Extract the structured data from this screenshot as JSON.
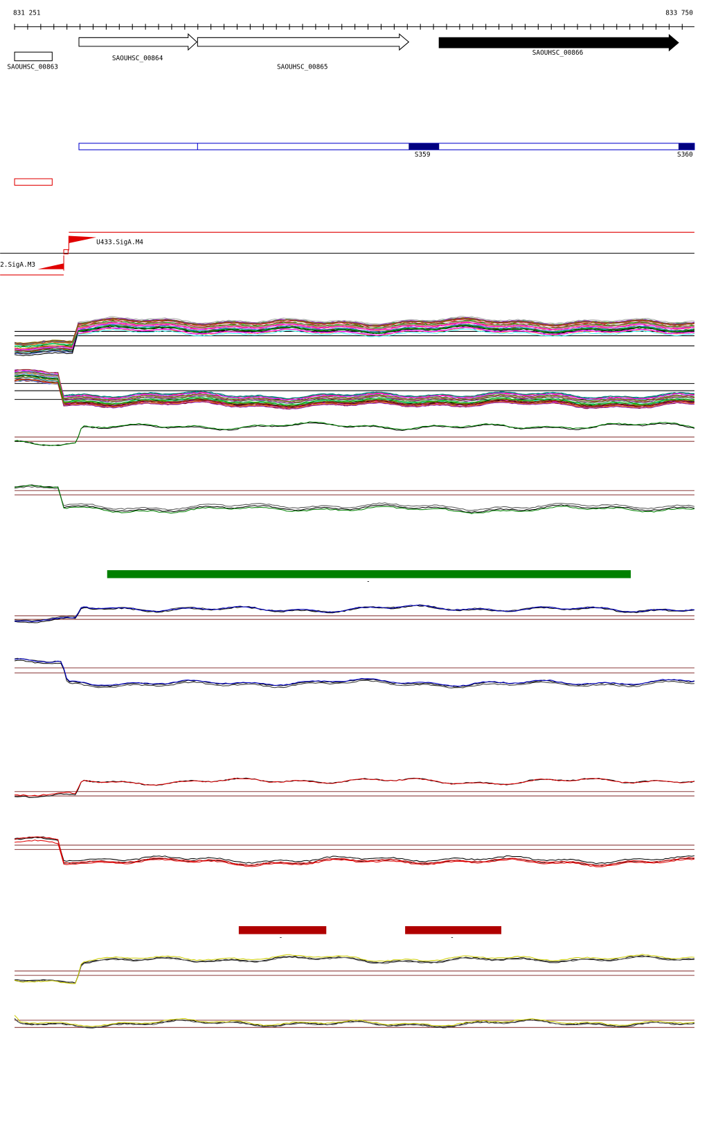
{
  "header": {
    "start": "831 251",
    "end": "833 750"
  },
  "genes": [
    {
      "label": "SAOUHSC_00863"
    },
    {
      "label": "SAOUHSC_00864"
    },
    {
      "label": "SAOUHSC_00865"
    },
    {
      "label": "SAOUHSC_00866"
    }
  ],
  "segments": [
    {
      "label": "S359"
    },
    {
      "label": "S360"
    }
  ],
  "promoters": [
    {
      "label": "U433.SigA.M4"
    },
    {
      "label": "2.SigA.M3"
    }
  ],
  "features": [
    {
      "label": "-"
    },
    {
      "label": "-"
    },
    {
      "label": "-"
    }
  ]
}
